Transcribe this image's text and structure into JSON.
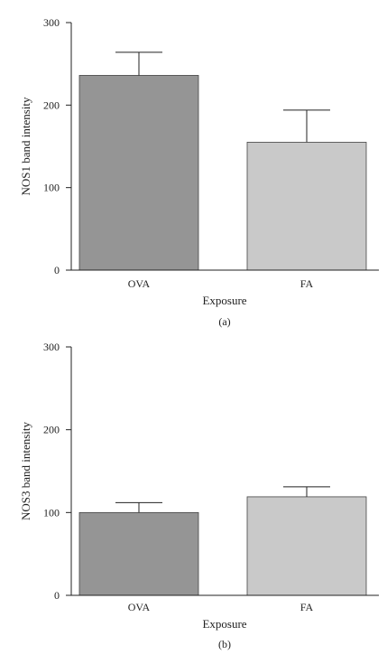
{
  "chart_data": [
    {
      "type": "bar",
      "categories": [
        "OVA",
        "FA"
      ],
      "values": [
        236,
        155
      ],
      "errors": [
        28,
        39
      ],
      "colors": [
        "#959595",
        "#c9c9c9"
      ],
      "xlabel": "Exposure",
      "ylabel": "NOS1 band intensity",
      "ylim": [
        0,
        300
      ],
      "yticks": [
        0,
        100,
        200,
        300
      ],
      "caption": "(a)",
      "grid": false
    },
    {
      "type": "bar",
      "categories": [
        "OVA",
        "FA"
      ],
      "values": [
        100,
        119
      ],
      "errors": [
        12,
        12
      ],
      "colors": [
        "#959595",
        "#c9c9c9"
      ],
      "xlabel": "Exposure",
      "ylabel": "NOS3 band intensity",
      "ylim": [
        0,
        300
      ],
      "yticks": [
        0,
        100,
        200,
        300
      ],
      "caption": "(b)",
      "grid": false
    }
  ]
}
